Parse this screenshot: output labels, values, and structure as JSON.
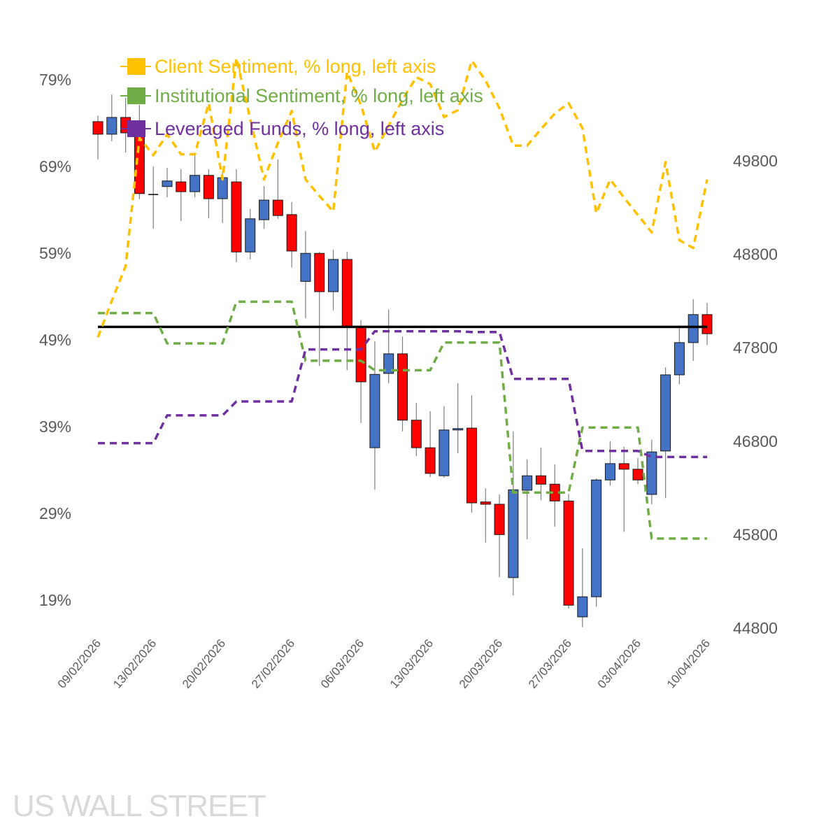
{
  "chart_data": {
    "type": "candlestick+line",
    "title": "",
    "watermark": "US WALL STREET",
    "left_axis": {
      "ticks": [
        19,
        29,
        39,
        49,
        59,
        69,
        79
      ],
      "tick_labels": [
        "19%",
        "29%",
        "39%",
        "49%",
        "59%",
        "69%",
        "79%"
      ],
      "range": [
        19,
        79
      ]
    },
    "right_axis": {
      "ticks": [
        44800,
        45800,
        46800,
        47800,
        48800,
        49800
      ],
      "tick_labels": [
        "44800",
        "45800",
        "46800",
        "47800",
        "48800",
        "49800"
      ],
      "range": [
        44800,
        49800
      ]
    },
    "x_tick_labels": [
      {
        "index": 0,
        "label": "09/02/2026"
      },
      {
        "index": 4,
        "label": "13/02/2026"
      },
      {
        "index": 9,
        "label": "20/02/2026"
      },
      {
        "index": 14,
        "label": "27/02/2026"
      },
      {
        "index": 19,
        "label": "06/03/2026"
      },
      {
        "index": 24,
        "label": "13/03/2026"
      },
      {
        "index": 29,
        "label": "20/03/2026"
      },
      {
        "index": 34,
        "label": "27/03/2026"
      },
      {
        "index": 39,
        "label": "03/04/2026"
      },
      {
        "index": 44,
        "label": "10/04/2026"
      }
    ],
    "legend": [
      {
        "label": "Client Sentiment, % long, left axis",
        "color": "#FFC000"
      },
      {
        "label": "Institutional Sentiment, % long, left axis",
        "color": "#70AD47"
      },
      {
        "label": "Leveraged Funds, % long, left axis",
        "color": "#7030A0"
      }
    ],
    "legend_position": "top-left",
    "reference_line": {
      "axis": "left",
      "value": 50.5,
      "color": "#000000"
    },
    "candle_colors": {
      "up": "#4472C4",
      "down": "#FF0000"
    },
    "ohlc": [
      [
        50220,
        50285,
        49815,
        50085
      ],
      [
        50085,
        50510,
        50010,
        50265
      ],
      [
        50265,
        50475,
        49890,
        50100
      ],
      [
        50100,
        50400,
        49390,
        49450
      ],
      [
        49440,
        49740,
        49075,
        49440
      ],
      [
        49525,
        49725,
        49410,
        49585
      ],
      [
        49575,
        49710,
        49155,
        49470
      ],
      [
        49470,
        49860,
        49410,
        49645
      ],
      [
        49645,
        49710,
        49185,
        49395
      ],
      [
        49395,
        49690,
        49135,
        49620
      ],
      [
        49575,
        49710,
        48715,
        48825
      ],
      [
        48825,
        49285,
        48745,
        49180
      ],
      [
        49170,
        49530,
        49075,
        49380
      ],
      [
        49380,
        49815,
        49180,
        49215
      ],
      [
        49225,
        49360,
        48660,
        48835
      ],
      [
        48510,
        49050,
        48115,
        48810
      ],
      [
        48810,
        48825,
        47605,
        48400
      ],
      [
        48400,
        48850,
        48200,
        48745
      ],
      [
        48745,
        48825,
        47560,
        48025
      ],
      [
        48025,
        48095,
        46995,
        47435
      ],
      [
        46730,
        47870,
        46280,
        47515
      ],
      [
        47525,
        48210,
        47420,
        47735
      ],
      [
        47735,
        47920,
        46905,
        47025
      ],
      [
        47025,
        47210,
        46640,
        46730
      ],
      [
        46730,
        47120,
        46415,
        46455
      ],
      [
        46430,
        47175,
        46410,
        46920
      ],
      [
        46920,
        47420,
        46670,
        46935
      ],
      [
        46940,
        47290,
        46035,
        46140
      ],
      [
        46150,
        46295,
        45715,
        46125
      ],
      [
        46125,
        46230,
        45345,
        45800
      ],
      [
        45340,
        46905,
        45150,
        46280
      ],
      [
        46275,
        46605,
        45750,
        46430
      ],
      [
        46430,
        46730,
        46170,
        46340
      ],
      [
        46340,
        46550,
        45885,
        46160
      ],
      [
        46160,
        46235,
        45010,
        45045
      ],
      [
        44920,
        45655,
        44810,
        45135
      ],
      [
        45135,
        46400,
        45030,
        46385
      ],
      [
        46385,
        46800,
        46325,
        46560
      ],
      [
        46560,
        46740,
        45830,
        46500
      ],
      [
        46500,
        46620,
        46340,
        46385
      ],
      [
        46230,
        46815,
        46125,
        46685
      ],
      [
        46695,
        47590,
        46190,
        47510
      ],
      [
        47510,
        48010,
        47410,
        47855
      ],
      [
        47855,
        48320,
        47660,
        48155
      ],
      [
        48155,
        48280,
        47830,
        47950
      ]
    ],
    "series": [
      {
        "name": "Client Sentiment, % long, left axis",
        "color": "#FFC000",
        "values": [
          49.3,
          53.5,
          57.5,
          72.3,
          70.3,
          72.7,
          70.4,
          70.4,
          76.3,
          67.5,
          81.5,
          74.5,
          67.5,
          71.7,
          75.4,
          67.5,
          65.6,
          63.8,
          79.9,
          76.1,
          70.7,
          73.7,
          76.7,
          79.3,
          78.5,
          74.7,
          75.5,
          81.2,
          78.9,
          75.7,
          71.4,
          71.4,
          73.3,
          75.1,
          76.3,
          73.4,
          63.6,
          67.5,
          65.4,
          63.4,
          61.4,
          69.5,
          60.5,
          59.6,
          67.5
        ]
      },
      {
        "name": "Institutional Sentiment, % long, left axis",
        "color": "#70AD47",
        "values": [
          52.1,
          52.1,
          52.1,
          52.1,
          52.1,
          48.6,
          48.6,
          48.6,
          48.6,
          48.6,
          53.4,
          53.4,
          53.4,
          53.4,
          53.4,
          46.6,
          46.6,
          46.6,
          46.6,
          46.6,
          45.5,
          45.5,
          45.5,
          45.5,
          45.5,
          48.7,
          48.7,
          48.7,
          48.7,
          48.7,
          31.4,
          31.4,
          31.4,
          31.4,
          31.4,
          38.9,
          38.9,
          38.9,
          38.9,
          38.9,
          26.1,
          26.1,
          26.1,
          26.1,
          26.1
        ]
      },
      {
        "name": "Leveraged Funds, % long, left axis",
        "color": "#7030A0",
        "values": [
          37.1,
          37.1,
          37.1,
          37.1,
          37.1,
          40.3,
          40.3,
          40.3,
          40.3,
          40.3,
          41.9,
          41.9,
          41.9,
          41.9,
          41.9,
          47.9,
          47.9,
          47.9,
          47.9,
          47.9,
          50.0,
          50.0,
          50.0,
          50.0,
          50.0,
          50.0,
          50.0,
          49.9,
          49.9,
          49.9,
          44.5,
          44.5,
          44.5,
          44.5,
          44.5,
          36.2,
          36.2,
          36.2,
          36.2,
          36.2,
          35.5,
          35.5,
          35.5,
          35.5,
          35.5
        ]
      }
    ]
  }
}
